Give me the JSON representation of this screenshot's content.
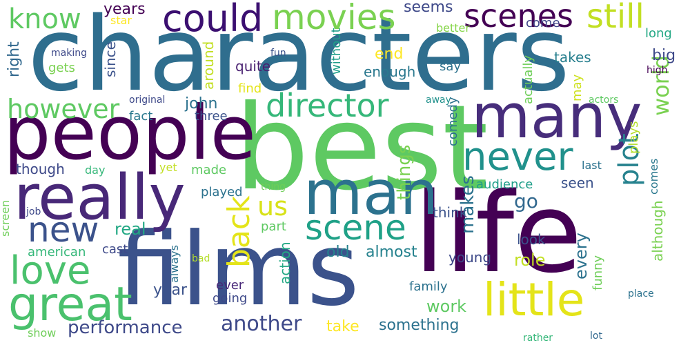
{
  "words": [
    {
      "text": "characters",
      "color": "#2f6e8e"
    },
    {
      "text": "best",
      "color": "#5ec962"
    },
    {
      "text": "life",
      "color": "#440154"
    },
    {
      "text": "films",
      "color": "#3b528b"
    },
    {
      "text": "people",
      "color": "#440154"
    },
    {
      "text": "many",
      "color": "#472d7b"
    },
    {
      "text": "really",
      "color": "#482878"
    },
    {
      "text": "man",
      "color": "#2c728e"
    },
    {
      "text": "scenes",
      "color": "#440154"
    },
    {
      "text": "could",
      "color": "#3b0f70"
    },
    {
      "text": "movies",
      "color": "#7ad151"
    },
    {
      "text": "know",
      "color": "#5ec962"
    },
    {
      "text": "still",
      "color": "#c2df23"
    },
    {
      "text": "great",
      "color": "#4ac16d"
    },
    {
      "text": "love",
      "color": "#4ac16d"
    },
    {
      "text": "new",
      "color": "#3b528b"
    },
    {
      "text": "little",
      "color": "#e4e419"
    },
    {
      "text": "scene",
      "color": "#1fa187"
    },
    {
      "text": "director",
      "color": "#35b779"
    },
    {
      "text": "never",
      "color": "#21918c"
    },
    {
      "text": "world",
      "color": "#7ad151"
    },
    {
      "text": "plot",
      "color": "#26828e"
    },
    {
      "text": "however",
      "color": "#5ec962"
    },
    {
      "text": "back",
      "color": "#e4e419"
    },
    {
      "text": "us",
      "color": "#d8e219"
    },
    {
      "text": "another",
      "color": "#3e4989"
    },
    {
      "text": "performance",
      "color": "#3e4989"
    },
    {
      "text": "makes",
      "color": "#2c728e"
    },
    {
      "text": "things",
      "color": "#7ad151"
    },
    {
      "text": "go",
      "color": "#31688e"
    },
    {
      "text": "right",
      "color": "#31688e"
    },
    {
      "text": "years",
      "color": "#440154"
    },
    {
      "text": "seems",
      "color": "#3e4989"
    },
    {
      "text": "come",
      "color": "#404688"
    },
    {
      "text": "star",
      "color": "#fde725"
    },
    {
      "text": "better",
      "color": "#86d549"
    },
    {
      "text": "long",
      "color": "#22a884"
    },
    {
      "text": "big",
      "color": "#3e4989"
    },
    {
      "text": "end",
      "color": "#fde725"
    },
    {
      "text": "takes",
      "color": "#277f8e"
    },
    {
      "text": "say",
      "color": "#2c728e"
    },
    {
      "text": "enough",
      "color": "#2a788e"
    },
    {
      "text": "quite",
      "color": "#481f70"
    },
    {
      "text": "since",
      "color": "#3b528b"
    },
    {
      "text": "around",
      "color": "#c2df23"
    },
    {
      "text": "without",
      "color": "#1f9e89"
    },
    {
      "text": "actually",
      "color": "#6ece58"
    },
    {
      "text": "fun",
      "color": "#3b528b"
    },
    {
      "text": "making",
      "color": "#3e4989"
    },
    {
      "text": "gets",
      "color": "#7ad151"
    },
    {
      "text": "find",
      "color": "#e4e419"
    },
    {
      "text": "may",
      "color": "#cde11d"
    },
    {
      "text": "high",
      "color": "#440154"
    },
    {
      "text": "john",
      "color": "#2c728e"
    },
    {
      "text": "original",
      "color": "#3e4989"
    },
    {
      "text": "fact",
      "color": "#2a788e"
    },
    {
      "text": "three",
      "color": "#3b528b"
    },
    {
      "text": "away",
      "color": "#21918c"
    },
    {
      "text": "actors",
      "color": "#5ec962"
    },
    {
      "text": "comedy",
      "color": "#2c728e"
    },
    {
      "text": "plays",
      "color": "#b5de2b"
    },
    {
      "text": "though",
      "color": "#3e4989"
    },
    {
      "text": "day",
      "color": "#35b779"
    },
    {
      "text": "made",
      "color": "#5ec962"
    },
    {
      "text": "yet",
      "color": "#c2df23"
    },
    {
      "text": "last",
      "color": "#2c728e"
    },
    {
      "text": "think",
      "color": "#3b528b"
    },
    {
      "text": "audience",
      "color": "#1f9e89"
    },
    {
      "text": "seen",
      "color": "#3b528b"
    },
    {
      "text": "comes",
      "color": "#2a788e"
    },
    {
      "text": "although",
      "color": "#7ad151"
    },
    {
      "text": "played",
      "color": "#2c728e"
    },
    {
      "text": "thing",
      "color": "#6ece58"
    },
    {
      "text": "screen",
      "color": "#6ece58"
    },
    {
      "text": "job",
      "color": "#3e4989"
    },
    {
      "text": "part",
      "color": "#5ec962"
    },
    {
      "text": "real",
      "color": "#22a884"
    },
    {
      "text": "old",
      "color": "#26828e"
    },
    {
      "text": "almost",
      "color": "#26828e"
    },
    {
      "text": "action",
      "color": "#22a884"
    },
    {
      "text": "american",
      "color": "#35b779"
    },
    {
      "text": "cast",
      "color": "#3e4989"
    },
    {
      "text": "always",
      "color": "#2c728e"
    },
    {
      "text": "bad",
      "color": "#b5de2b"
    },
    {
      "text": "young",
      "color": "#3e4989"
    },
    {
      "text": "look",
      "color": "#3b528b"
    },
    {
      "text": "role",
      "color": "#c2df23"
    },
    {
      "text": "every",
      "color": "#2c728e"
    },
    {
      "text": "funny",
      "color": "#6ece58"
    },
    {
      "text": "year",
      "color": "#3b528b"
    },
    {
      "text": "ever",
      "color": "#482878"
    },
    {
      "text": "going",
      "color": "#3e4989"
    },
    {
      "text": "family",
      "color": "#2c728e"
    },
    {
      "text": "work",
      "color": "#5ec962"
    },
    {
      "text": "place",
      "color": "#2c728e"
    },
    {
      "text": "take",
      "color": "#fde725"
    },
    {
      "text": "something",
      "color": "#2c728e"
    },
    {
      "text": "show",
      "color": "#6ece58"
    },
    {
      "text": "rather",
      "color": "#35b779"
    },
    {
      "text": "lot",
      "color": "#31688e"
    }
  ]
}
